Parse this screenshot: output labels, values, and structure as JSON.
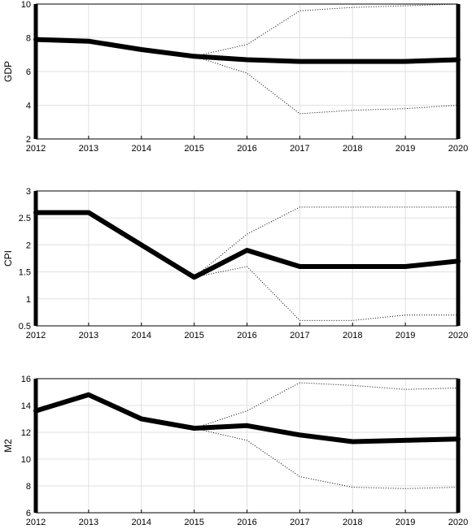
{
  "chart_data": [
    {
      "type": "line",
      "ylabel": "GDP",
      "x": [
        2012,
        2013,
        2014,
        2015,
        2016,
        2017,
        2018,
        2019,
        2020
      ],
      "xlim": [
        2012,
        2020
      ],
      "ylim": [
        2,
        10
      ],
      "yticks": [
        2,
        4,
        6,
        8,
        10
      ],
      "grid": true,
      "series": [
        {
          "role": "forecast",
          "style": "solid-thick",
          "x": [
            2012,
            2013,
            2014,
            2015,
            2016,
            2017,
            2018,
            2019,
            2020
          ],
          "y": [
            7.9,
            7.8,
            7.3,
            6.9,
            6.7,
            6.6,
            6.6,
            6.6,
            6.7
          ]
        },
        {
          "role": "upper-band",
          "style": "dotted",
          "x": [
            2015,
            2016,
            2017,
            2018,
            2019,
            2020
          ],
          "y": [
            6.9,
            7.6,
            9.6,
            9.8,
            9.9,
            10.0
          ]
        },
        {
          "role": "lower-band",
          "style": "dotted",
          "x": [
            2015,
            2016,
            2017,
            2018,
            2019,
            2020
          ],
          "y": [
            6.9,
            5.9,
            3.5,
            3.7,
            3.8,
            4.0
          ]
        }
      ]
    },
    {
      "type": "line",
      "ylabel": "CPI",
      "x": [
        2012,
        2013,
        2014,
        2015,
        2016,
        2017,
        2018,
        2019,
        2020
      ],
      "xlim": [
        2012,
        2020
      ],
      "ylim": [
        0.5,
        3
      ],
      "yticks": [
        0.5,
        1,
        1.5,
        2,
        2.5,
        3
      ],
      "grid": true,
      "series": [
        {
          "role": "forecast",
          "style": "solid-thick",
          "x": [
            2012,
            2013,
            2014,
            2015,
            2016,
            2017,
            2018,
            2019,
            2020
          ],
          "y": [
            2.6,
            2.6,
            2.0,
            1.4,
            1.9,
            1.6,
            1.6,
            1.6,
            1.7
          ]
        },
        {
          "role": "upper-band",
          "style": "dotted",
          "x": [
            2015,
            2016,
            2017,
            2018,
            2019,
            2020
          ],
          "y": [
            1.4,
            2.2,
            2.7,
            2.7,
            2.7,
            2.7
          ]
        },
        {
          "role": "lower-band",
          "style": "dotted",
          "x": [
            2015,
            2016,
            2017,
            2018,
            2019,
            2020
          ],
          "y": [
            1.4,
            1.6,
            0.6,
            0.6,
            0.7,
            0.7
          ]
        }
      ]
    },
    {
      "type": "line",
      "ylabel": "M2",
      "x": [
        2012,
        2013,
        2014,
        2015,
        2016,
        2017,
        2018,
        2019,
        2020
      ],
      "xlim": [
        2012,
        2020
      ],
      "ylim": [
        6,
        16
      ],
      "yticks": [
        6,
        8,
        10,
        12,
        14,
        16
      ],
      "grid": true,
      "series": [
        {
          "role": "forecast",
          "style": "solid-thick",
          "x": [
            2012,
            2013,
            2014,
            2015,
            2016,
            2017,
            2018,
            2019,
            2020
          ],
          "y": [
            13.6,
            14.8,
            13.0,
            12.3,
            12.5,
            11.8,
            11.3,
            11.4,
            11.5
          ]
        },
        {
          "role": "upper-band",
          "style": "dotted",
          "x": [
            2015,
            2016,
            2017,
            2018,
            2019,
            2020
          ],
          "y": [
            12.3,
            13.6,
            15.7,
            15.5,
            15.2,
            15.3
          ]
        },
        {
          "role": "lower-band",
          "style": "dotted",
          "x": [
            2015,
            2016,
            2017,
            2018,
            2019,
            2020
          ],
          "y": [
            12.3,
            11.4,
            8.7,
            7.9,
            7.8,
            7.9
          ]
        }
      ]
    }
  ]
}
